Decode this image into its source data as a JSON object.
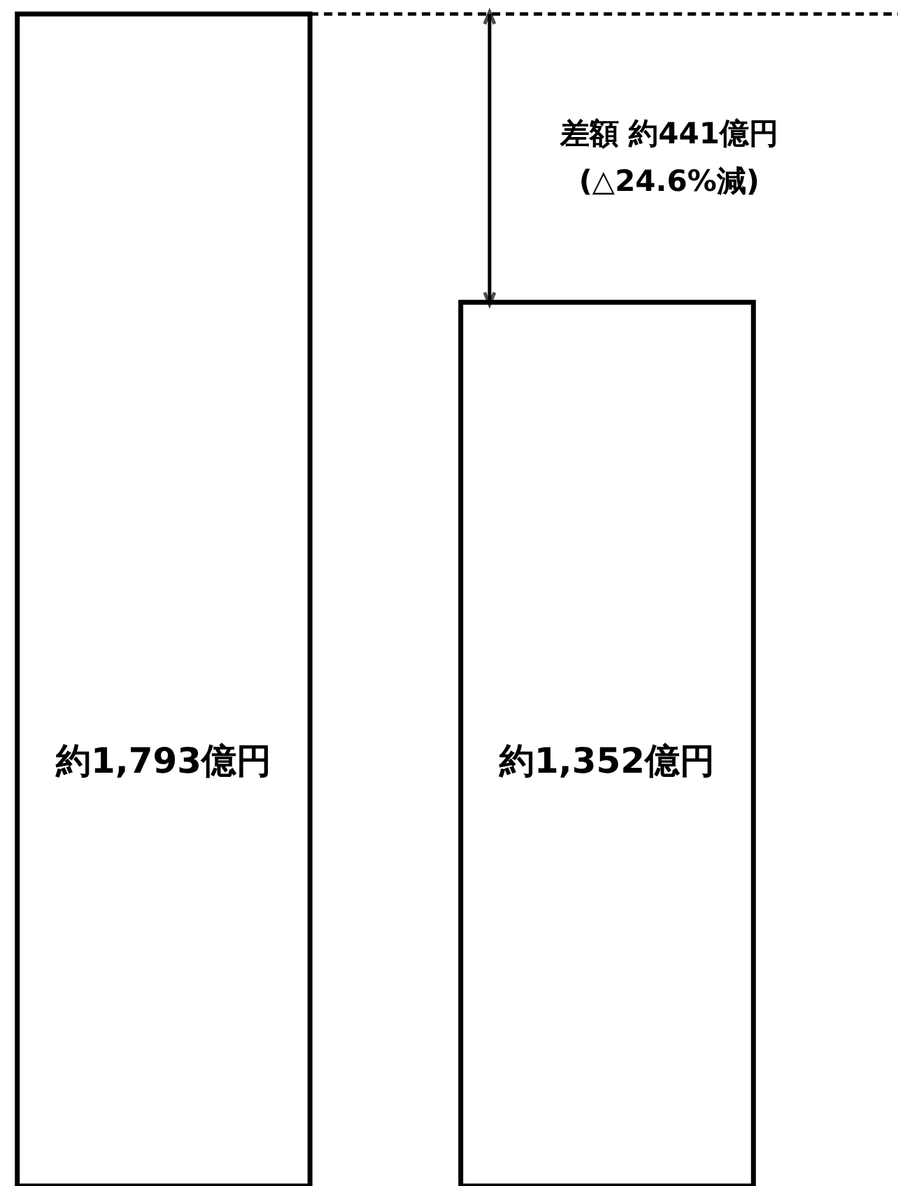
{
  "chart_data": {
    "type": "bar",
    "categories": [
      null,
      null
    ],
    "values": [
      1793,
      1352
    ],
    "colors": [
      "#ffffff",
      "#ffffff"
    ],
    "value_labels": [
      "約1,793億円",
      "約1,352億円"
    ],
    "ref_lines": [
      {
        "axis": "y",
        "value": 1793,
        "line_style": "dashed",
        "color": "#000000"
      }
    ],
    "annotations": [
      {
        "text": "差額 約441億円\n(△24.6%減)"
      }
    ]
  }
}
